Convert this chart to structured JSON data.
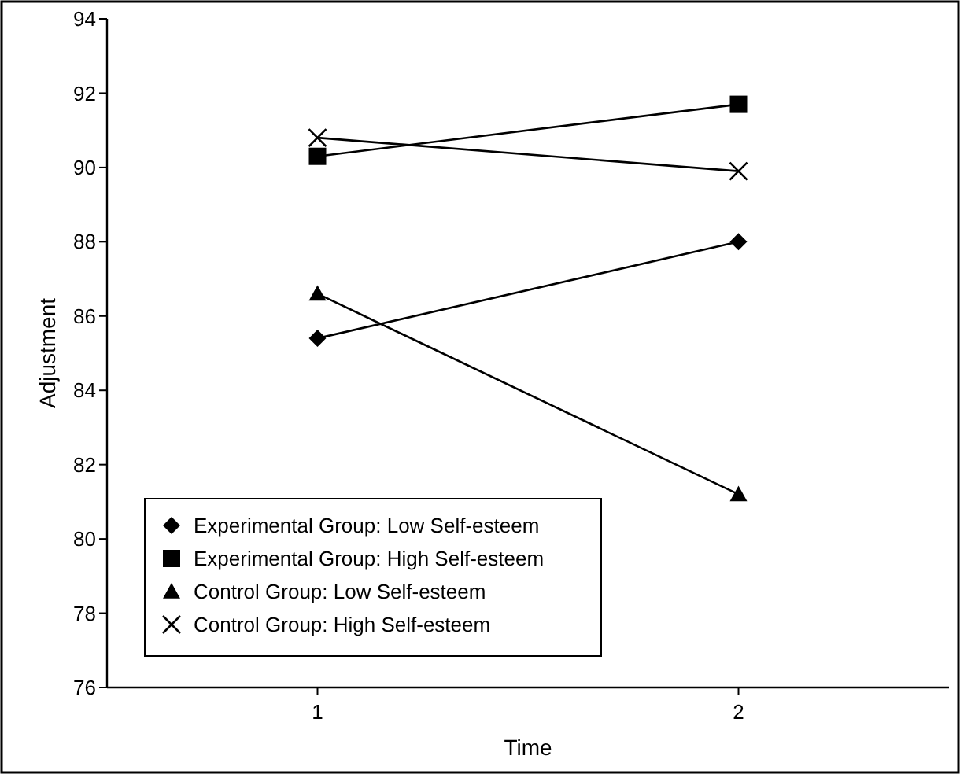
{
  "chart_data": {
    "type": "line",
    "xlabel": "Time",
    "ylabel": "Adjustment",
    "x": [
      1,
      2
    ],
    "xlim": [
      0.5,
      2.5
    ],
    "xticks": [
      1,
      2
    ],
    "ylim": [
      76,
      94
    ],
    "yticks": [
      76,
      78,
      80,
      82,
      84,
      86,
      88,
      90,
      92,
      94
    ],
    "grid": false,
    "legend": "bottom left",
    "series": [
      {
        "name": "Experimental Group: Low Self-esteem",
        "color": "#000000",
        "marker": "diamond",
        "values": [
          85.4,
          88.0
        ]
      },
      {
        "name": "Experimental Group: High Self-esteem",
        "color": "#000000",
        "marker": "square",
        "values": [
          90.3,
          91.7
        ]
      },
      {
        "name": "Control Group: Low Self-esteem",
        "color": "#000000",
        "marker": "triangle",
        "values": [
          86.6,
          81.2
        ]
      },
      {
        "name": "Control Group: High Self-esteem",
        "color": "#000000",
        "marker": "cross",
        "values": [
          90.8,
          89.9
        ]
      }
    ]
  }
}
